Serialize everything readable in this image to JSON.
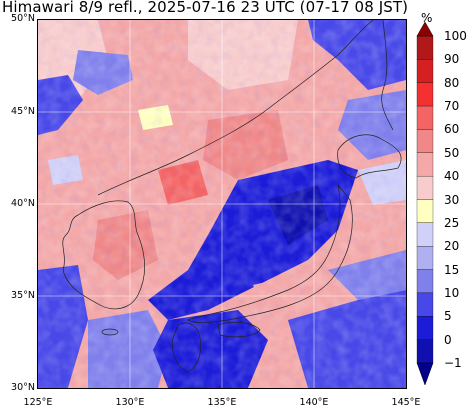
{
  "title": "Himawari 8/9 refl., 2025-07-16 23 UTC (07-17 08 JST)",
  "map": {
    "lon_range": [
      125,
      145
    ],
    "lat_range": [
      30,
      50
    ],
    "lat_labels": [
      "50°N",
      "45°N",
      "40°N",
      "35°N",
      "30°N"
    ],
    "lon_labels": [
      "125°E",
      "130°E",
      "135°E",
      "140°E",
      "145°E"
    ],
    "gridlines": true,
    "field": "reflectance"
  },
  "colorbar": {
    "unit": "%",
    "ticks": [
      "100",
      "90",
      "80",
      "70",
      "60",
      "50",
      "40",
      "30",
      "25",
      "20",
      "15",
      "10",
      "5",
      "0",
      "−1"
    ],
    "colors": [
      "#8b0000",
      "#b0181a",
      "#d42020",
      "#f43030",
      "#f56464",
      "#f08888",
      "#f4a8a8",
      "#f8cccc",
      "#ffffc0",
      "#d0d0f8",
      "#b0b0f0",
      "#8080ec",
      "#4848e8",
      "#1c1cd8",
      "#1010b0",
      "#00008b"
    ]
  }
}
